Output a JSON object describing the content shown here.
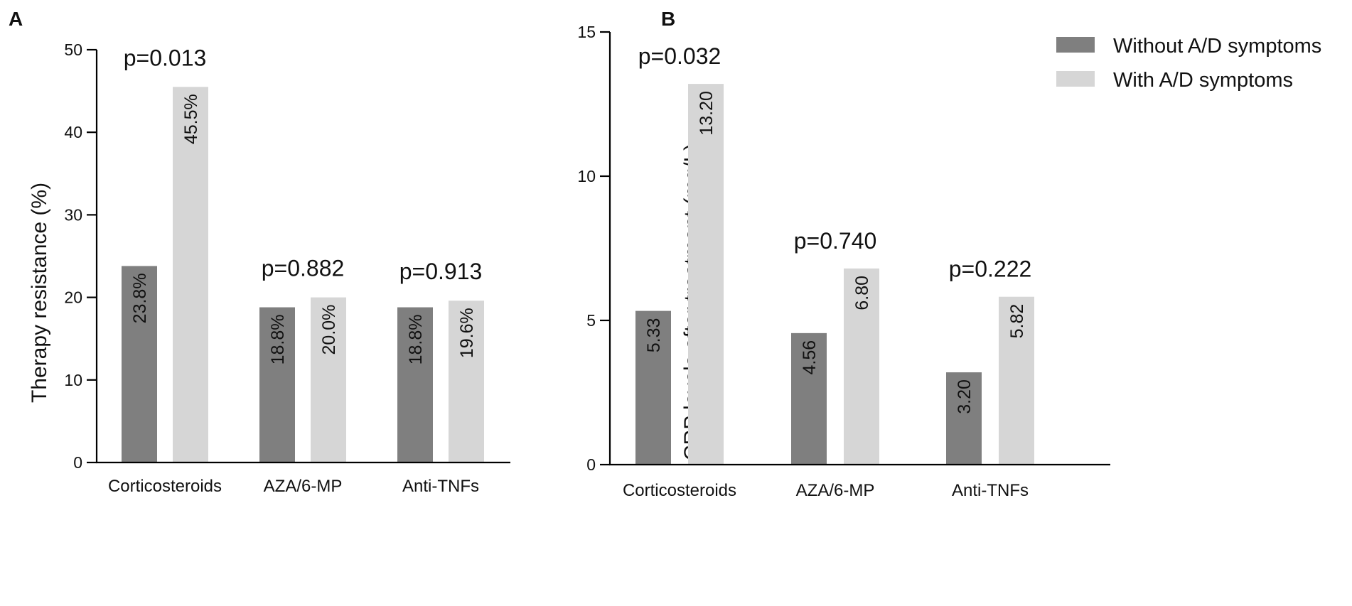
{
  "figure": {
    "colors": {
      "without": "#7f7f7f",
      "with": "#d6d6d6",
      "axis": "#000000"
    }
  },
  "legend": {
    "items": [
      {
        "label": "Without A/D symptoms",
        "color": "#7f7f7f"
      },
      {
        "label": "With A/D symptoms",
        "color": "#d6d6d6"
      }
    ]
  },
  "chart_data": [
    {
      "panel": "A",
      "type": "bar",
      "title": "",
      "xlabel": "",
      "ylabel": "Therapy resistance (%)",
      "ylim": [
        0,
        50
      ],
      "yticks": [
        "0",
        "10",
        "20",
        "30",
        "40",
        "50"
      ],
      "categories": [
        "Corticosteroids",
        "AZA/6-MP",
        "Anti-TNFs"
      ],
      "series": [
        {
          "name": "Without A/D symptoms",
          "values": [
            23.8,
            18.8,
            18.8
          ],
          "labels": [
            "23.8%",
            "18.8%",
            "18.8%"
          ]
        },
        {
          "name": "With A/D symptoms",
          "values": [
            45.5,
            20.0,
            19.6
          ],
          "labels": [
            "45.5%",
            "20.0%",
            "19.6%"
          ]
        }
      ],
      "annotations": [
        "p=0.013",
        "p=0.882",
        "p=0.913"
      ]
    },
    {
      "panel": "B",
      "type": "bar",
      "title": "",
      "xlabel": "",
      "ylabel": "CRP levels after treatment (mg/L)",
      "ylim": [
        0,
        15
      ],
      "yticks": [
        "0",
        "5",
        "10",
        "15"
      ],
      "categories": [
        "Corticosteroids",
        "AZA/6-MP",
        "Anti-TNFs"
      ],
      "series": [
        {
          "name": "Without A/D symptoms",
          "values": [
            5.33,
            4.56,
            3.2
          ],
          "labels": [
            "5.33",
            "4.56",
            "3.20"
          ]
        },
        {
          "name": "With A/D symptoms",
          "values": [
            13.2,
            6.8,
            5.82
          ],
          "labels": [
            "13.20",
            "6.80",
            "5.82"
          ]
        }
      ],
      "annotations": [
        "p=0.032",
        "p=0.740",
        "p=0.222"
      ],
      "legend_position": "top-right"
    }
  ]
}
